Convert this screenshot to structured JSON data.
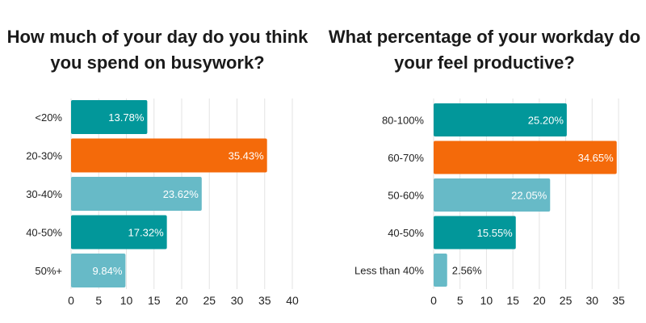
{
  "colors": {
    "teal": "#02979a",
    "orange": "#f46a0a",
    "light_teal": "#67bac7",
    "label_on_bar": "#ffffff",
    "label_outside": "#222222"
  },
  "chart_data": [
    {
      "type": "bar",
      "orientation": "horizontal",
      "title": "How much of your day do you think you spend on busywork?",
      "categories": [
        "<20%",
        "20-30%",
        "30-40%",
        "40-50%",
        "50%+"
      ],
      "values": [
        13.78,
        35.43,
        23.62,
        17.32,
        9.84
      ],
      "value_labels": [
        "13.78%",
        "35.43%",
        "23.62%",
        "17.32%",
        "9.84%"
      ],
      "bar_colors": [
        "#02979a",
        "#f46a0a",
        "#67bac7",
        "#02979a",
        "#67bac7"
      ],
      "xlim": [
        0,
        40
      ],
      "xticks": [
        0,
        5,
        10,
        15,
        20,
        25,
        30,
        35,
        40
      ],
      "grid": "vertical",
      "xlabel": "",
      "ylabel": ""
    },
    {
      "type": "bar",
      "orientation": "horizontal",
      "title": "What percentage of your workday do your feel productive?",
      "categories": [
        "80-100%",
        "60-70%",
        "50-60%",
        "40-50%",
        "Less than 40%"
      ],
      "values": [
        25.2,
        34.65,
        22.05,
        15.55,
        2.56
      ],
      "value_labels": [
        "25.20%",
        "34.65%",
        "22.05%",
        "15.55%",
        "2.56%"
      ],
      "bar_colors": [
        "#02979a",
        "#f46a0a",
        "#67bac7",
        "#02979a",
        "#67bac7"
      ],
      "xlim": [
        0,
        35
      ],
      "xticks": [
        0,
        5,
        10,
        15,
        20,
        25,
        30,
        35
      ],
      "grid": "vertical",
      "xlabel": "",
      "ylabel": ""
    }
  ]
}
